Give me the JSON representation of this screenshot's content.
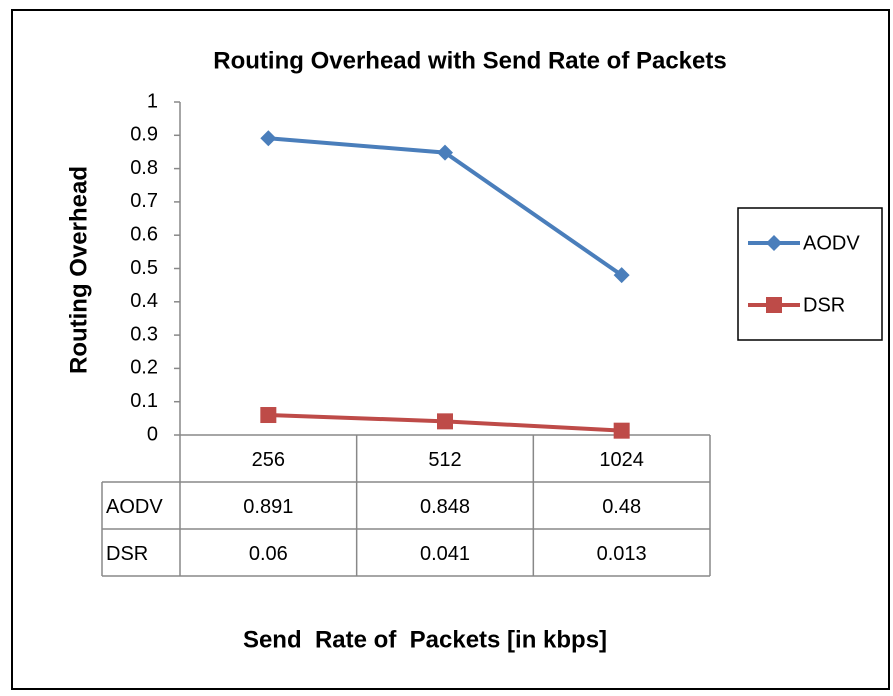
{
  "chart_data": {
    "type": "line",
    "title": "Routing Overhead with Send Rate of Packets",
    "y_label": "Routing Overhead",
    "x_label": "Send  Rate of  Packets [in kbps]",
    "categories": [
      "256",
      "512",
      "1024"
    ],
    "series": [
      {
        "name": "AODV",
        "color": "#4a7ebb",
        "marker": "diamond",
        "values": [
          0.891,
          0.848,
          0.48
        ]
      },
      {
        "name": "DSR",
        "color": "#be4b48",
        "marker": "square",
        "values": [
          0.06,
          0.041,
          0.013
        ]
      }
    ],
    "ylim": [
      0,
      1
    ],
    "yticks": [
      0,
      0.1,
      0.2,
      0.3,
      0.4,
      0.5,
      0.6,
      0.7,
      0.8,
      0.9,
      1
    ],
    "grid": false,
    "legend": "right",
    "data_table": true
  }
}
